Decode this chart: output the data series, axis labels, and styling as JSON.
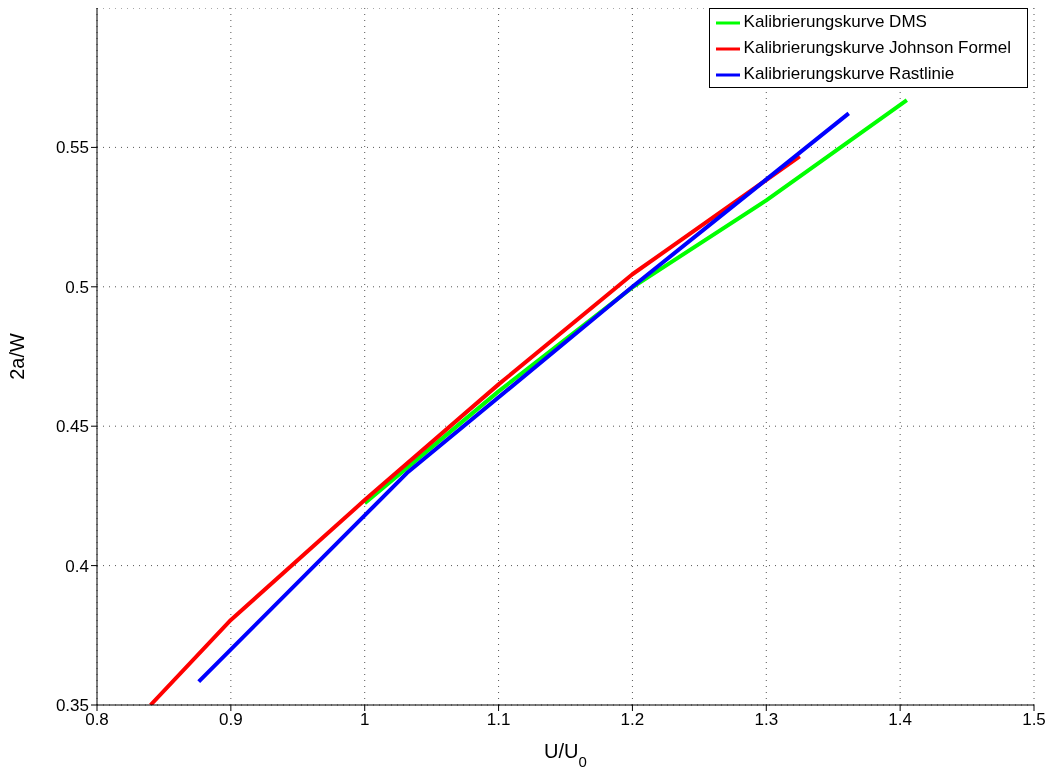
{
  "chart_data": {
    "type": "line",
    "xlabel": "U/U$_{0}$",
    "ylabel": "2a/W",
    "series": [
      {
        "name": "Kalibrierungskurve DMS",
        "color": "#00ff00",
        "x": [
          1.0,
          1.1,
          1.2,
          1.3,
          1.405
        ],
        "values": [
          0.4224,
          0.4625,
          0.4998,
          0.531,
          0.567
        ]
      },
      {
        "name": "Kalibrierungskurve Johnson Formel",
        "color": "#ff0000",
        "x": [
          0.84,
          0.9,
          1.0,
          1.1,
          1.2,
          1.325
        ],
        "values": [
          0.35,
          0.3805,
          0.4235,
          0.465,
          0.5045,
          0.5468
        ]
      },
      {
        "name": "Kalibrierungskurve Rastlinie",
        "color": "#0000ff",
        "x": [
          0.876,
          1.0,
          1.0315,
          1.2,
          1.3616
        ],
        "values": [
          0.3584,
          0.418,
          0.4332,
          0.5,
          0.5622
        ]
      }
    ],
    "xlim": [
      0.8,
      1.5
    ],
    "xticks": [
      0.8,
      0.9,
      1,
      1.1,
      1.2,
      1.3,
      1.4,
      1.5
    ],
    "ylim": [
      0.35,
      0.6
    ],
    "yticks": [
      0.35,
      0.4,
      0.45,
      0.5,
      0.55
    ],
    "grid": true,
    "legend": "top right",
    "marker": "none",
    "line_style": "solid"
  }
}
